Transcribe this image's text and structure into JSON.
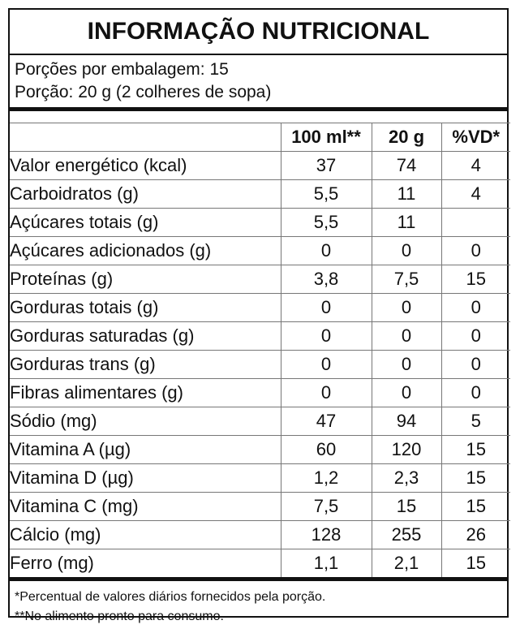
{
  "title": "INFORMAÇÃO NUTRICIONAL",
  "serving": {
    "portions": "Porções por embalagem: 15",
    "portion": "Porção: 20 g (2 colheres de sopa)"
  },
  "table": {
    "headers": [
      "",
      "100 ml**",
      "20 g",
      "%VD*"
    ],
    "rows": [
      {
        "name": "Valor energético (kcal)",
        "indent": 0,
        "v100": "37",
        "v20": "74",
        "vd": "4"
      },
      {
        "name": "Carboidratos (g)",
        "indent": 0,
        "v100": "5,5",
        "v20": "11",
        "vd": "4"
      },
      {
        "name": "Açúcares totais (g)",
        "indent": 1,
        "v100": "5,5",
        "v20": "11",
        "vd": ""
      },
      {
        "name": "Açúcares adicionados (g)",
        "indent": 2,
        "v100": "0",
        "v20": "0",
        "vd": "0"
      },
      {
        "name": "Proteínas (g)",
        "indent": 0,
        "v100": "3,8",
        "v20": "7,5",
        "vd": "15"
      },
      {
        "name": "Gorduras totais (g)",
        "indent": 0,
        "v100": "0",
        "v20": "0",
        "vd": "0"
      },
      {
        "name": "Gorduras saturadas (g)",
        "indent": 1,
        "v100": "0",
        "v20": "0",
        "vd": "0"
      },
      {
        "name": "Gorduras trans (g)",
        "indent": 1,
        "v100": "0",
        "v20": "0",
        "vd": "0"
      },
      {
        "name": "Fibras alimentares (g)",
        "indent": 0,
        "v100": "0",
        "v20": "0",
        "vd": "0"
      },
      {
        "name": "Sódio (mg)",
        "indent": 0,
        "v100": "47",
        "v20": "94",
        "vd": "5"
      },
      {
        "name": "Vitamina A (µg)",
        "indent": 0,
        "v100": "60",
        "v20": "120",
        "vd": "15"
      },
      {
        "name": "Vitamina D (µg)",
        "indent": 0,
        "v100": "1,2",
        "v20": "2,3",
        "vd": "15"
      },
      {
        "name": "Vitamina C (mg)",
        "indent": 0,
        "v100": "7,5",
        "v20": "15",
        "vd": "15"
      },
      {
        "name": "Cálcio (mg)",
        "indent": 0,
        "v100": "128",
        "v20": "255",
        "vd": "26"
      },
      {
        "name": "Ferro (mg)",
        "indent": 0,
        "v100": "1,1",
        "v20": "2,1",
        "vd": "15"
      }
    ]
  },
  "footer": {
    "note1": "*Percentual de valores diários fornecidos pela porção.",
    "note2": "**No alimento pronto para consumo."
  }
}
